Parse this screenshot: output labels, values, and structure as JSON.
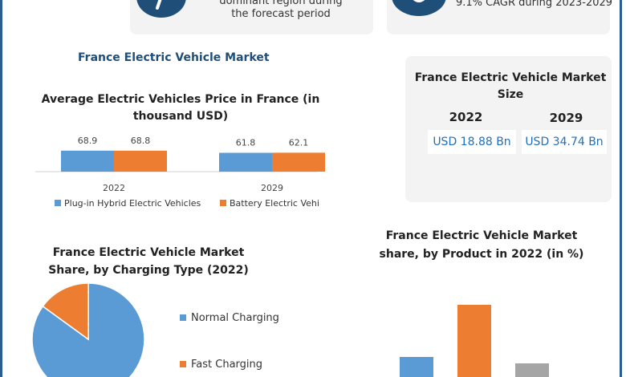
{
  "top_left_card": {
    "line1": "dominant region during",
    "line2": "the forecast period"
  },
  "top_right_card": {
    "line1": "9.1% CAGR during 2023-2029"
  },
  "section_title": "France Electric Vehicle Market",
  "market_size": {
    "title_line1": "France Electric Vehicle Market",
    "title_line2": "Size",
    "year1": "2022",
    "year2": "2029",
    "value1": "USD 18.88 Bn",
    "value2": "USD 34.74 Bn"
  },
  "colors": {
    "blue": "#5b9bd5",
    "orange": "#ed7d31",
    "accent": "#1f4e79"
  },
  "icons": [
    "info-icon",
    "growth-icon"
  ],
  "chart_data": [
    {
      "type": "bar",
      "title_line1": "Average Electric Vehicles Price in France (in",
      "title_line2": "thousand USD)",
      "categories": [
        "2022",
        "2029"
      ],
      "series": [
        {
          "name": "Plug-in Hybrid Electric Vehicles",
          "values": [
            68.9,
            61.8
          ]
        },
        {
          "name": "Battery Electric Vehi",
          "values": [
            68.8,
            62.1
          ]
        }
      ],
      "legend": "bottom"
    },
    {
      "type": "pie",
      "title_line1": "France Electric Vehicle Market",
      "title_line2": "Share, by Charging Type (2022)",
      "labels": [
        "Normal Charging",
        "Fast Charging"
      ],
      "values": [
        85,
        15
      ],
      "legend": "right"
    },
    {
      "type": "bar",
      "title_line1": "France Electric Vehicle Market",
      "title_line2": "share, by Product in 2022 (in %)",
      "values": [
        30,
        95,
        22
      ]
    }
  ]
}
